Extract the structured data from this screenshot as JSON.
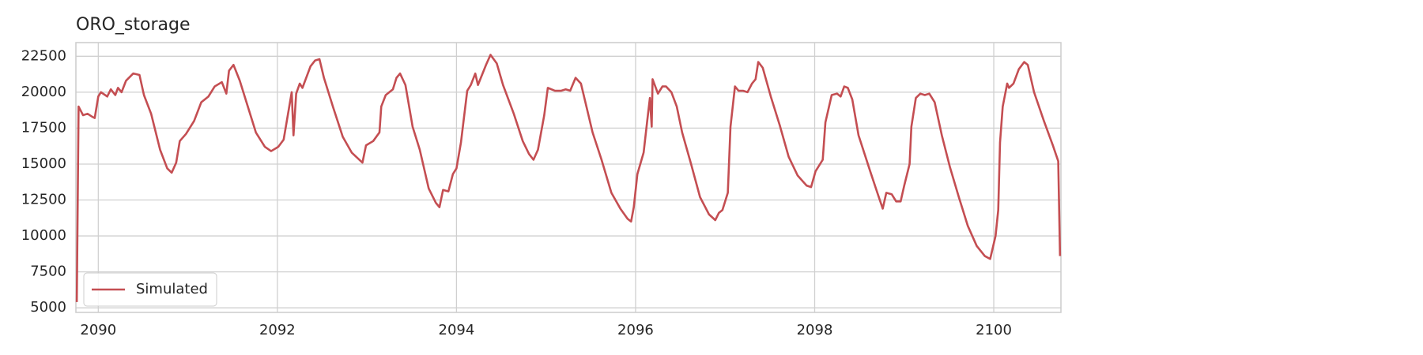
{
  "chart_data": {
    "type": "line",
    "title": "ORO_storage",
    "x": [
      2089.76,
      2089.78,
      2089.83,
      2089.88,
      2089.93,
      2089.96,
      2090.0,
      2090.03,
      2090.1,
      2090.14,
      2090.19,
      2090.22,
      2090.26,
      2090.31,
      2090.39,
      2090.46,
      2090.51,
      2090.59,
      2090.69,
      2090.77,
      2090.82,
      2090.87,
      2090.91,
      2090.98,
      2091.07,
      2091.15,
      2091.23,
      2091.3,
      2091.38,
      2091.43,
      2091.46,
      2091.51,
      2091.58,
      2091.66,
      2091.76,
      2091.86,
      2091.93,
      2092.01,
      2092.07,
      2092.16,
      2092.18,
      2092.21,
      2092.25,
      2092.28,
      2092.37,
      2092.42,
      2092.47,
      2092.52,
      2092.62,
      2092.73,
      2092.83,
      2092.95,
      2092.99,
      2093.07,
      2093.14,
      2093.16,
      2093.21,
      2093.29,
      2093.33,
      2093.37,
      2093.43,
      2093.51,
      2093.59,
      2093.69,
      2093.77,
      2093.81,
      2093.85,
      2093.91,
      2093.96,
      2094.0,
      2094.05,
      2094.12,
      2094.16,
      2094.21,
      2094.24,
      2094.33,
      2094.38,
      2094.45,
      2094.52,
      2094.64,
      2094.74,
      2094.81,
      2094.86,
      2094.91,
      2094.98,
      2095.02,
      2095.1,
      2095.17,
      2095.22,
      2095.27,
      2095.33,
      2095.39,
      2095.52,
      2095.62,
      2095.73,
      2095.83,
      2095.91,
      2095.95,
      2095.98,
      2096.02,
      2096.09,
      2096.13,
      2096.16,
      2096.18,
      2096.19,
      2096.25,
      2096.3,
      2096.34,
      2096.4,
      2096.46,
      2096.52,
      2096.62,
      2096.72,
      2096.82,
      2096.89,
      2096.93,
      2096.97,
      2097.03,
      2097.06,
      2097.11,
      2097.15,
      2097.2,
      2097.25,
      2097.3,
      2097.34,
      2097.37,
      2097.42,
      2097.51,
      2097.61,
      2097.71,
      2097.81,
      2097.91,
      2097.96,
      2098.01,
      2098.09,
      2098.12,
      2098.19,
      2098.25,
      2098.29,
      2098.33,
      2098.37,
      2098.42,
      2098.49,
      2098.62,
      2098.7,
      2098.76,
      2098.8,
      2098.86,
      2098.91,
      2098.96,
      2099.0,
      2099.06,
      2099.08,
      2099.13,
      2099.18,
      2099.23,
      2099.28,
      2099.34,
      2099.42,
      2099.51,
      2099.61,
      2099.71,
      2099.81,
      2099.9,
      2099.96,
      2100.02,
      2100.05,
      2100.07,
      2100.1,
      2100.15,
      2100.17,
      2100.22,
      2100.28,
      2100.34,
      2100.38,
      2100.45,
      2100.56,
      2100.66,
      2100.72,
      2100.74
    ],
    "series": [
      {
        "name": "Simulated",
        "color": "#c44e52",
        "values": [
          5400,
          19000,
          18400,
          18500,
          18300,
          18200,
          19700,
          20000,
          19700,
          20200,
          19800,
          20300,
          20000,
          20800,
          21300,
          21200,
          19800,
          18500,
          16000,
          14700,
          14400,
          15100,
          16600,
          17100,
          18000,
          19300,
          19700,
          20400,
          20700,
          19900,
          21500,
          21900,
          20800,
          19200,
          17200,
          16200,
          15900,
          16200,
          16700,
          20000,
          17000,
          19900,
          20600,
          20300,
          21800,
          22200,
          22300,
          21000,
          19000,
          16900,
          15800,
          15100,
          16300,
          16600,
          17200,
          19000,
          19800,
          20200,
          21000,
          21300,
          20500,
          17600,
          16000,
          13300,
          12300,
          12000,
          13200,
          13100,
          14300,
          14700,
          16500,
          20100,
          20500,
          21300,
          20500,
          21900,
          22600,
          22000,
          20500,
          18500,
          16600,
          15700,
          15300,
          16000,
          18400,
          20300,
          20100,
          20100,
          20200,
          20100,
          21000,
          20600,
          17200,
          15300,
          13000,
          11900,
          11200,
          11000,
          12000,
          14300,
          15800,
          18000,
          19600,
          17600,
          20900,
          19900,
          20400,
          20400,
          20000,
          19000,
          17200,
          15000,
          12700,
          11500,
          11100,
          11600,
          11800,
          13000,
          17600,
          20400,
          20100,
          20100,
          20000,
          20600,
          20900,
          22100,
          21700,
          19700,
          17700,
          15500,
          14200,
          13500,
          13400,
          14500,
          15300,
          17900,
          19800,
          19900,
          19700,
          20400,
          20300,
          19500,
          17000,
          14500,
          13000,
          11900,
          13000,
          12900,
          12400,
          12400,
          13500,
          15000,
          17600,
          19600,
          19900,
          19800,
          19900,
          19300,
          17000,
          14800,
          12700,
          10700,
          9300,
          8600,
          8400,
          10000,
          11800,
          16500,
          19000,
          20600,
          20300,
          20600,
          21600,
          22100,
          21900,
          20000,
          18000,
          16300,
          15200,
          8600
        ]
      }
    ],
    "xlim": [
      2089.75,
      2100.75
    ],
    "ylim": [
      4680,
      23450
    ],
    "xticks": [
      2090,
      2092,
      2094,
      2096,
      2098,
      2100
    ],
    "yticks": [
      5000,
      7500,
      10000,
      12500,
      15000,
      17500,
      20000,
      22500
    ],
    "grid": true,
    "legend": "lower left"
  }
}
